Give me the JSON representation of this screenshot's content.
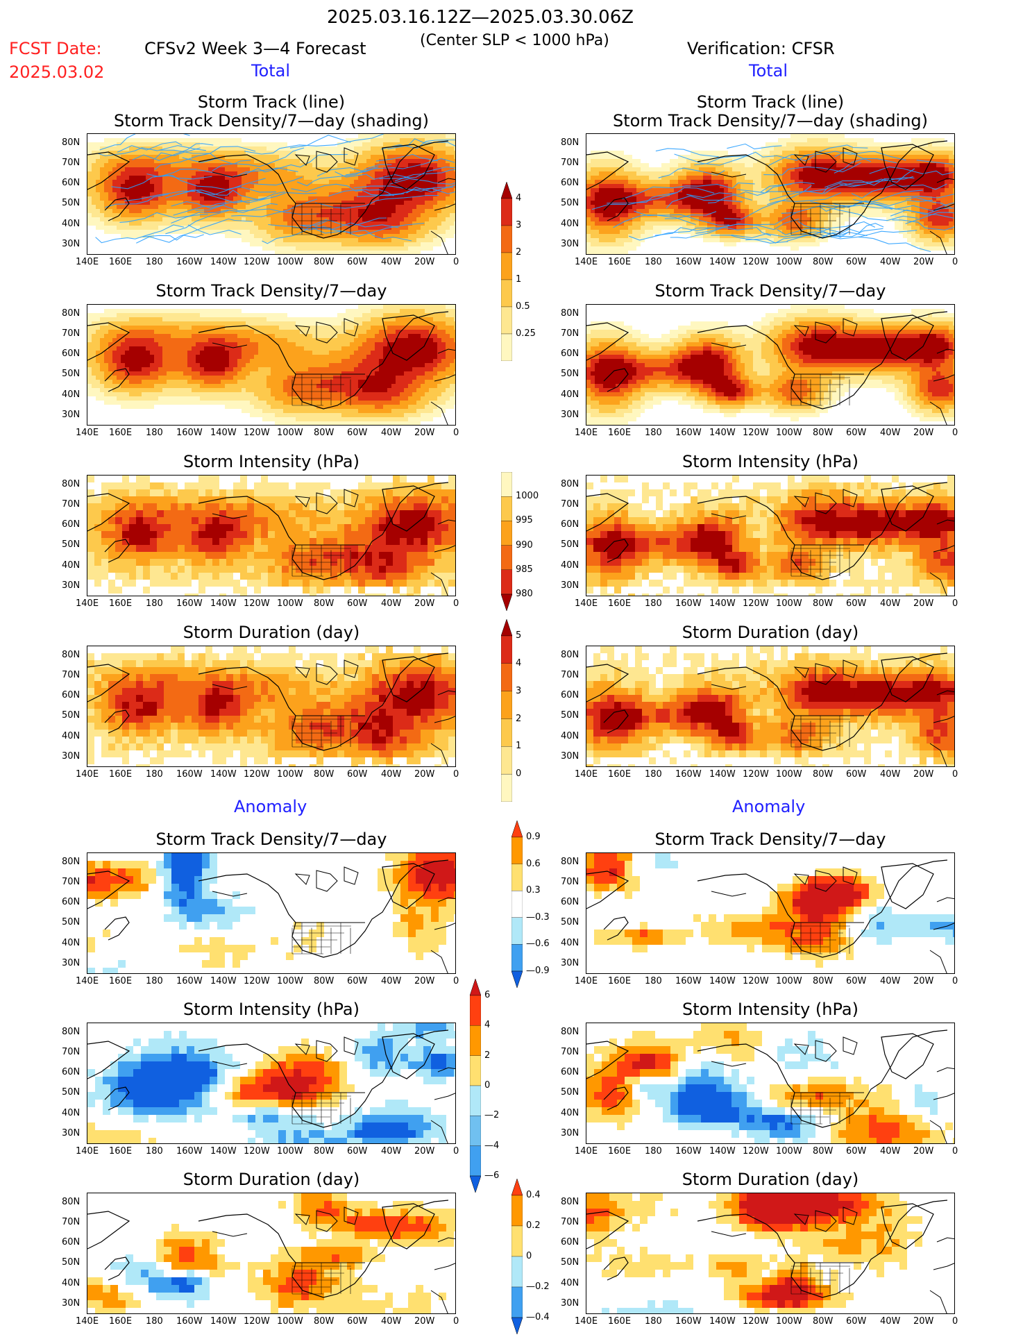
{
  "header": {
    "date_range": "2025.03.16.12Z—2025.03.30.06Z",
    "center_slp": "(Center SLP < 1000 hPa)",
    "fcst_label": "FCST Date:",
    "fcst_value": "2025.03.02",
    "left_title": "CFSv2 Week 3—4 Forecast",
    "right_title": "Verification: CFSR",
    "section_total": "Total",
    "section_anomaly": "Anomaly"
  },
  "panels": {
    "track": [
      "Storm Track (line)",
      "Storm Track Density/7—day (shading)"
    ],
    "density": "Storm Track Density/7—day",
    "intensity": "Storm Intensity (hPa)",
    "duration": "Storm Duration (day)"
  },
  "axes": {
    "lat_labels": [
      "80N",
      "70N",
      "60N",
      "50N",
      "40N",
      "30N"
    ],
    "lon_labels": [
      "140E",
      "160E",
      "180",
      "160W",
      "140W",
      "120W",
      "100W",
      "80W",
      "60W",
      "40W",
      "20W",
      "0"
    ]
  },
  "colorbars": {
    "density_total": {
      "labels": [
        "4",
        "3",
        "2",
        "1",
        "0.5",
        "0.25"
      ],
      "colors": [
        "#a50000",
        "#dc2b18",
        "#f36a14",
        "#fca21c",
        "#fdc94c",
        "#fee791",
        "#fff7c0"
      ]
    },
    "intensity_total": {
      "labels": [
        "1000",
        "995",
        "990",
        "985",
        "980"
      ],
      "colors": [
        "#fff7c0",
        "#fdc94c",
        "#fca21c",
        "#f36a14",
        "#dc2b18",
        "#a50000"
      ]
    },
    "duration_total": {
      "labels": [
        "5",
        "4",
        "3",
        "2",
        "1",
        "0"
      ],
      "colors": [
        "#a50000",
        "#dc2b18",
        "#f36a14",
        "#fca21c",
        "#fdc94c",
        "#fee791",
        "#fff7c0"
      ]
    },
    "density_anom": {
      "labels": [
        "0.9",
        "0.6",
        "0.3",
        "—0.3",
        "—0.6",
        "—0.9"
      ],
      "colors": [
        "#ff4010",
        "#ff9800",
        "#ffe070",
        "#ffffff",
        "#b0e8f8",
        "#40a0f0",
        "#1060e0"
      ]
    },
    "intensity_anom": {
      "labels": [
        "6",
        "4",
        "2",
        "0",
        "—2",
        "—4",
        "—6"
      ],
      "colors": [
        "#d01818",
        "#ff4010",
        "#ff9800",
        "#ffe070",
        "#b0e8f8",
        "#70c0f0",
        "#40a0f0",
        "#1060e0"
      ]
    },
    "duration_anom": {
      "labels": [
        "0.4",
        "0.2",
        "0",
        "—0.2",
        "—0.4"
      ],
      "colors": [
        "#ff4010",
        "#ff9800",
        "#ffe070",
        "#b0e8f8",
        "#40a0f0",
        "#1060e0"
      ]
    }
  }
}
